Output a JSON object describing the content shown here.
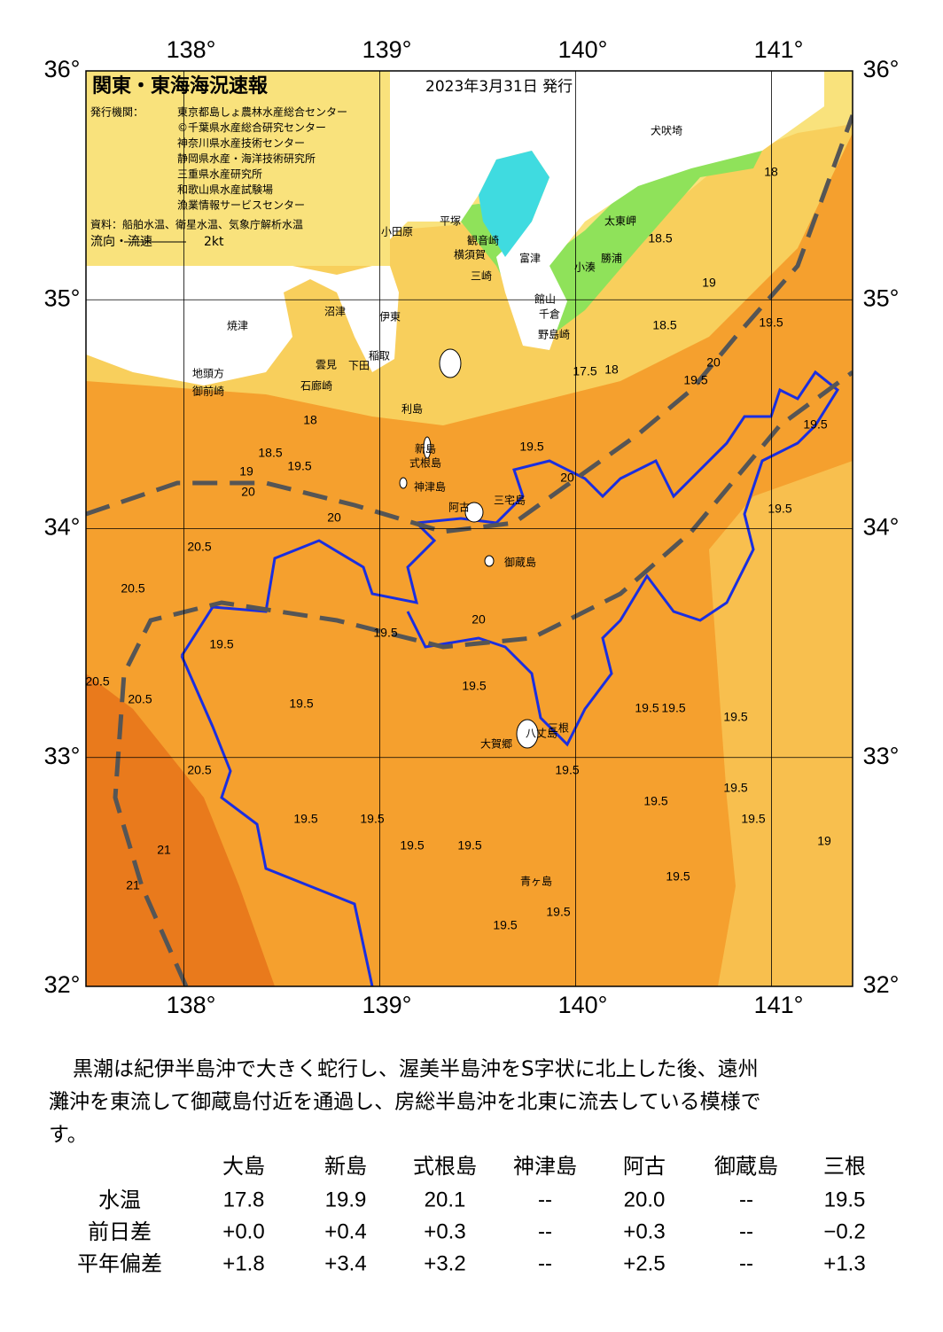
{
  "map": {
    "title": "関東・東海海況速報",
    "date": "2023年3月31日 発行",
    "issuer_label": "発行機関：",
    "issuers": [
      "東京都島しょ農林水産総合センター",
      "©千葉県水産総合研究センター",
      "神奈川県水産技術センター",
      "静岡県水産・海洋技術研究所",
      "三重県水産研究所",
      "和歌山県水産試験場",
      "漁業情報サービスセンター"
    ],
    "source": "資料：船舶水温、衛星水温、気象庁解析水温",
    "flow_label": "流向・流速",
    "flow_scale": "2kt",
    "lon_ticks": [
      {
        "value": 138,
        "label": "138°"
      },
      {
        "value": 139,
        "label": "139°"
      },
      {
        "value": 140,
        "label": "140°"
      },
      {
        "value": 141,
        "label": "141°"
      }
    ],
    "lat_ticks": [
      {
        "value": 36,
        "label": "36°"
      },
      {
        "value": 35,
        "label": "35°"
      },
      {
        "value": 34,
        "label": "34°"
      },
      {
        "value": 33,
        "label": "33°"
      },
      {
        "value": 32,
        "label": "32°"
      }
    ],
    "places": [
      "犬吠埼",
      "太東岬",
      "勝浦",
      "小湊",
      "館山",
      "千倉",
      "野島崎",
      "富津",
      "横須賀",
      "観音崎",
      "三崎",
      "平塚",
      "小田原",
      "沼津",
      "伊東",
      "稲取",
      "焼津",
      "地頭方",
      "御前崎",
      "雲見",
      "石廊崎",
      "下田",
      "利島",
      "新島",
      "式根島",
      "神津島",
      "三宅島",
      "阿古",
      "御蔵島",
      "八丈島",
      "大賀郷",
      "三根",
      "青ヶ島"
    ],
    "contour_labels": [
      18,
      18.5,
      19,
      20,
      19.5,
      20,
      20.5,
      20.5,
      19.5,
      20.5,
      20.5,
      19.5,
      20.5,
      21,
      21,
      19.5,
      19.5,
      19.5,
      19.5,
      20,
      19.5,
      19.5,
      19.5,
      19.5,
      19.5,
      19.5,
      19.5,
      19.5,
      19.5,
      19.5,
      19.5,
      19.5,
      18,
      18.5,
      17.5,
      18,
      18.5,
      19,
      19.5,
      20,
      19.5,
      19.5,
      19.5,
      20,
      19.5,
      19
    ]
  },
  "description": [
    "黒潮は紀伊半島沖で大きく蛇行し、渥美半島沖をS字状に北上した後、遠州",
    "灘沖を東流して御蔵島付近を通過し、房総半島沖を北東に流去している模様で",
    "す。"
  ],
  "table": {
    "columns": [
      "大島",
      "新島",
      "式根島",
      "神津島",
      "阿古",
      "御蔵島",
      "三根"
    ],
    "rows": [
      {
        "label": "水温",
        "values": [
          "17.8",
          "19.9",
          "20.1",
          "--",
          "20.0",
          "--",
          "19.5"
        ]
      },
      {
        "label": "前日差",
        "values": [
          "+0.0",
          "+0.4",
          "+0.3",
          "--",
          "+0.3",
          "--",
          "−0.2"
        ]
      },
      {
        "label": "平年偏差",
        "values": [
          "+1.8",
          "+3.4",
          "+3.2",
          "--",
          "+2.5",
          "--",
          "+1.3"
        ]
      }
    ]
  }
}
